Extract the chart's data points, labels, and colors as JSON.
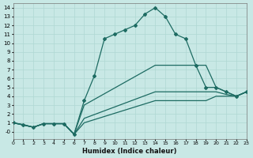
{
  "xlabel": "Humidex (Indice chaleur)",
  "bg_color": "#c8e8e5",
  "grid_color": "#afd8d3",
  "line_color": "#1d6b62",
  "xlim": [
    0,
    23
  ],
  "ylim": [
    -0.8,
    14.5
  ],
  "xtick_labels": [
    "0",
    "1",
    "2",
    "3",
    "4",
    "5",
    "6",
    "7",
    "8",
    "9",
    "10",
    "11",
    "12",
    "13",
    "14",
    "15",
    "16",
    "17",
    "18",
    "19",
    "20",
    "21",
    "22",
    "23"
  ],
  "ytick_vals": [
    0,
    1,
    2,
    3,
    4,
    5,
    6,
    7,
    8,
    9,
    10,
    11,
    12,
    13,
    14
  ],
  "line1_x": [
    0,
    1,
    2,
    3,
    4,
    5,
    6,
    7,
    8,
    9,
    10,
    11,
    12,
    13,
    14,
    15,
    16,
    17,
    18,
    19,
    20,
    21,
    22,
    23
  ],
  "line1_y": [
    1.0,
    0.8,
    0.5,
    0.9,
    0.9,
    0.9,
    -0.3,
    3.5,
    6.3,
    10.5,
    11.0,
    11.5,
    12.0,
    13.3,
    14.0,
    13.0,
    11.0,
    10.5,
    7.5,
    5.0,
    5.0,
    4.5,
    4.0,
    4.5
  ],
  "line2_x": [
    0,
    2,
    3,
    4,
    5,
    6,
    7,
    14,
    19,
    20,
    21,
    22,
    23
  ],
  "line2_y": [
    1.0,
    0.5,
    0.9,
    0.9,
    0.9,
    -0.3,
    3.0,
    7.5,
    7.5,
    5.0,
    4.5,
    4.0,
    4.5
  ],
  "line3_x": [
    0,
    2,
    3,
    4,
    5,
    6,
    7,
    14,
    19,
    20,
    21,
    22,
    23
  ],
  "line3_y": [
    1.0,
    0.5,
    0.9,
    0.9,
    0.9,
    -0.3,
    1.5,
    4.5,
    4.5,
    4.5,
    4.2,
    4.0,
    4.5
  ],
  "line4_x": [
    0,
    2,
    3,
    4,
    5,
    6,
    7,
    14,
    19,
    20,
    21,
    22,
    23
  ],
  "line4_y": [
    1.0,
    0.5,
    0.9,
    0.9,
    0.9,
    -0.3,
    1.0,
    3.5,
    3.5,
    4.0,
    4.0,
    4.0,
    4.5
  ]
}
